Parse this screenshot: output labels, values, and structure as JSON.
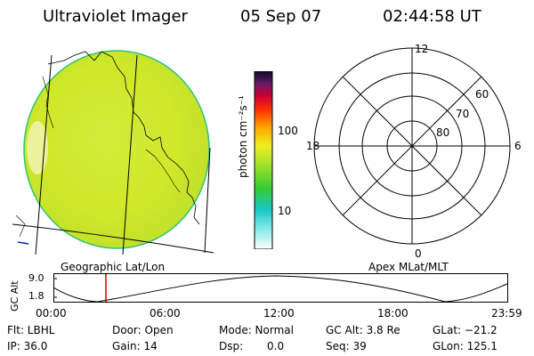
{
  "header": {
    "title": "Ultraviolet Imager",
    "date": "05 Sep 07",
    "time": "02:44:58 UT"
  },
  "colorbar": {
    "label": "photon cm⁻²s⁻¹",
    "ticks": [
      "100",
      "10"
    ]
  },
  "polar": {
    "labels": {
      "top": "12",
      "bottom": "0",
      "left": "18",
      "right": "6"
    },
    "rings": [
      "60",
      "70",
      "80"
    ]
  },
  "image_panel": {
    "caption": "Geographic Lat/Lon"
  },
  "polar_panel": {
    "caption": "Apex MLat/MLT"
  },
  "altitude_plot": {
    "ylabel": "GC Alt",
    "yticks": [
      "9.0",
      "1.8"
    ],
    "xticks": [
      "00:00",
      "06:00",
      "12:00",
      "18:00",
      "23:59"
    ],
    "current_time_marker": "02:44:58"
  },
  "status": {
    "flt": "Flt: LBHL",
    "ip": "IP: 36.0",
    "door": "Door: Open",
    "gain": "Gain: 14",
    "mode": "Mode: Normal",
    "dsp_label": "Dsp:",
    "dsp_value": "0.0",
    "gcalt": "GC Alt: 3.8 Re",
    "seq": "Seq: 39",
    "glat": "GLat: −21.2",
    "glon": "GLon: 125.1"
  },
  "colors": {
    "image_fill": "#dcef2a",
    "image_rim": "#2ec27a",
    "marker": "#cc0000",
    "coastline": "#000000"
  }
}
